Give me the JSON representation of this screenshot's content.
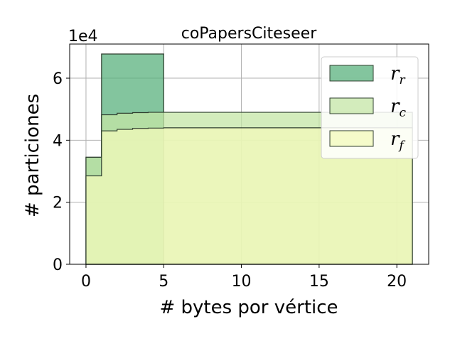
{
  "chart_data": {
    "type": "area",
    "title": "coPapersCiteseer",
    "xlabel": "# bytes por vértice",
    "ylabel": "# particiones",
    "y_scale_label": "1e4",
    "xlim": [
      -1.05,
      22.05
    ],
    "ylim": [
      0,
      7.1
    ],
    "y_multiplier": 10000,
    "xticks": [
      0,
      5,
      10,
      15,
      20
    ],
    "yticks": [
      0,
      2,
      4,
      6
    ],
    "grid": true,
    "legend_position": "top-right",
    "series": [
      {
        "name": "r_r",
        "legend_base": "r",
        "legend_sub": "r",
        "color": "#5ab17e",
        "x": [
          0,
          1,
          5
        ],
        "y": [
          3.45,
          6.78,
          6.78
        ]
      },
      {
        "name": "r_c",
        "legend_base": "r",
        "legend_sub": "c",
        "color": "#c4e6a6",
        "x": [
          0,
          1,
          2,
          3,
          4,
          5,
          21
        ],
        "y": [
          3.45,
          4.82,
          4.87,
          4.89,
          4.9,
          4.9,
          4.9
        ]
      },
      {
        "name": "r_f",
        "legend_base": "r",
        "legend_sub": "f",
        "color": "#f3f9bb",
        "x": [
          0,
          1,
          2,
          3,
          4,
          5,
          21
        ],
        "y": [
          2.85,
          4.3,
          4.35,
          4.38,
          4.39,
          4.4,
          4.4
        ]
      }
    ]
  }
}
